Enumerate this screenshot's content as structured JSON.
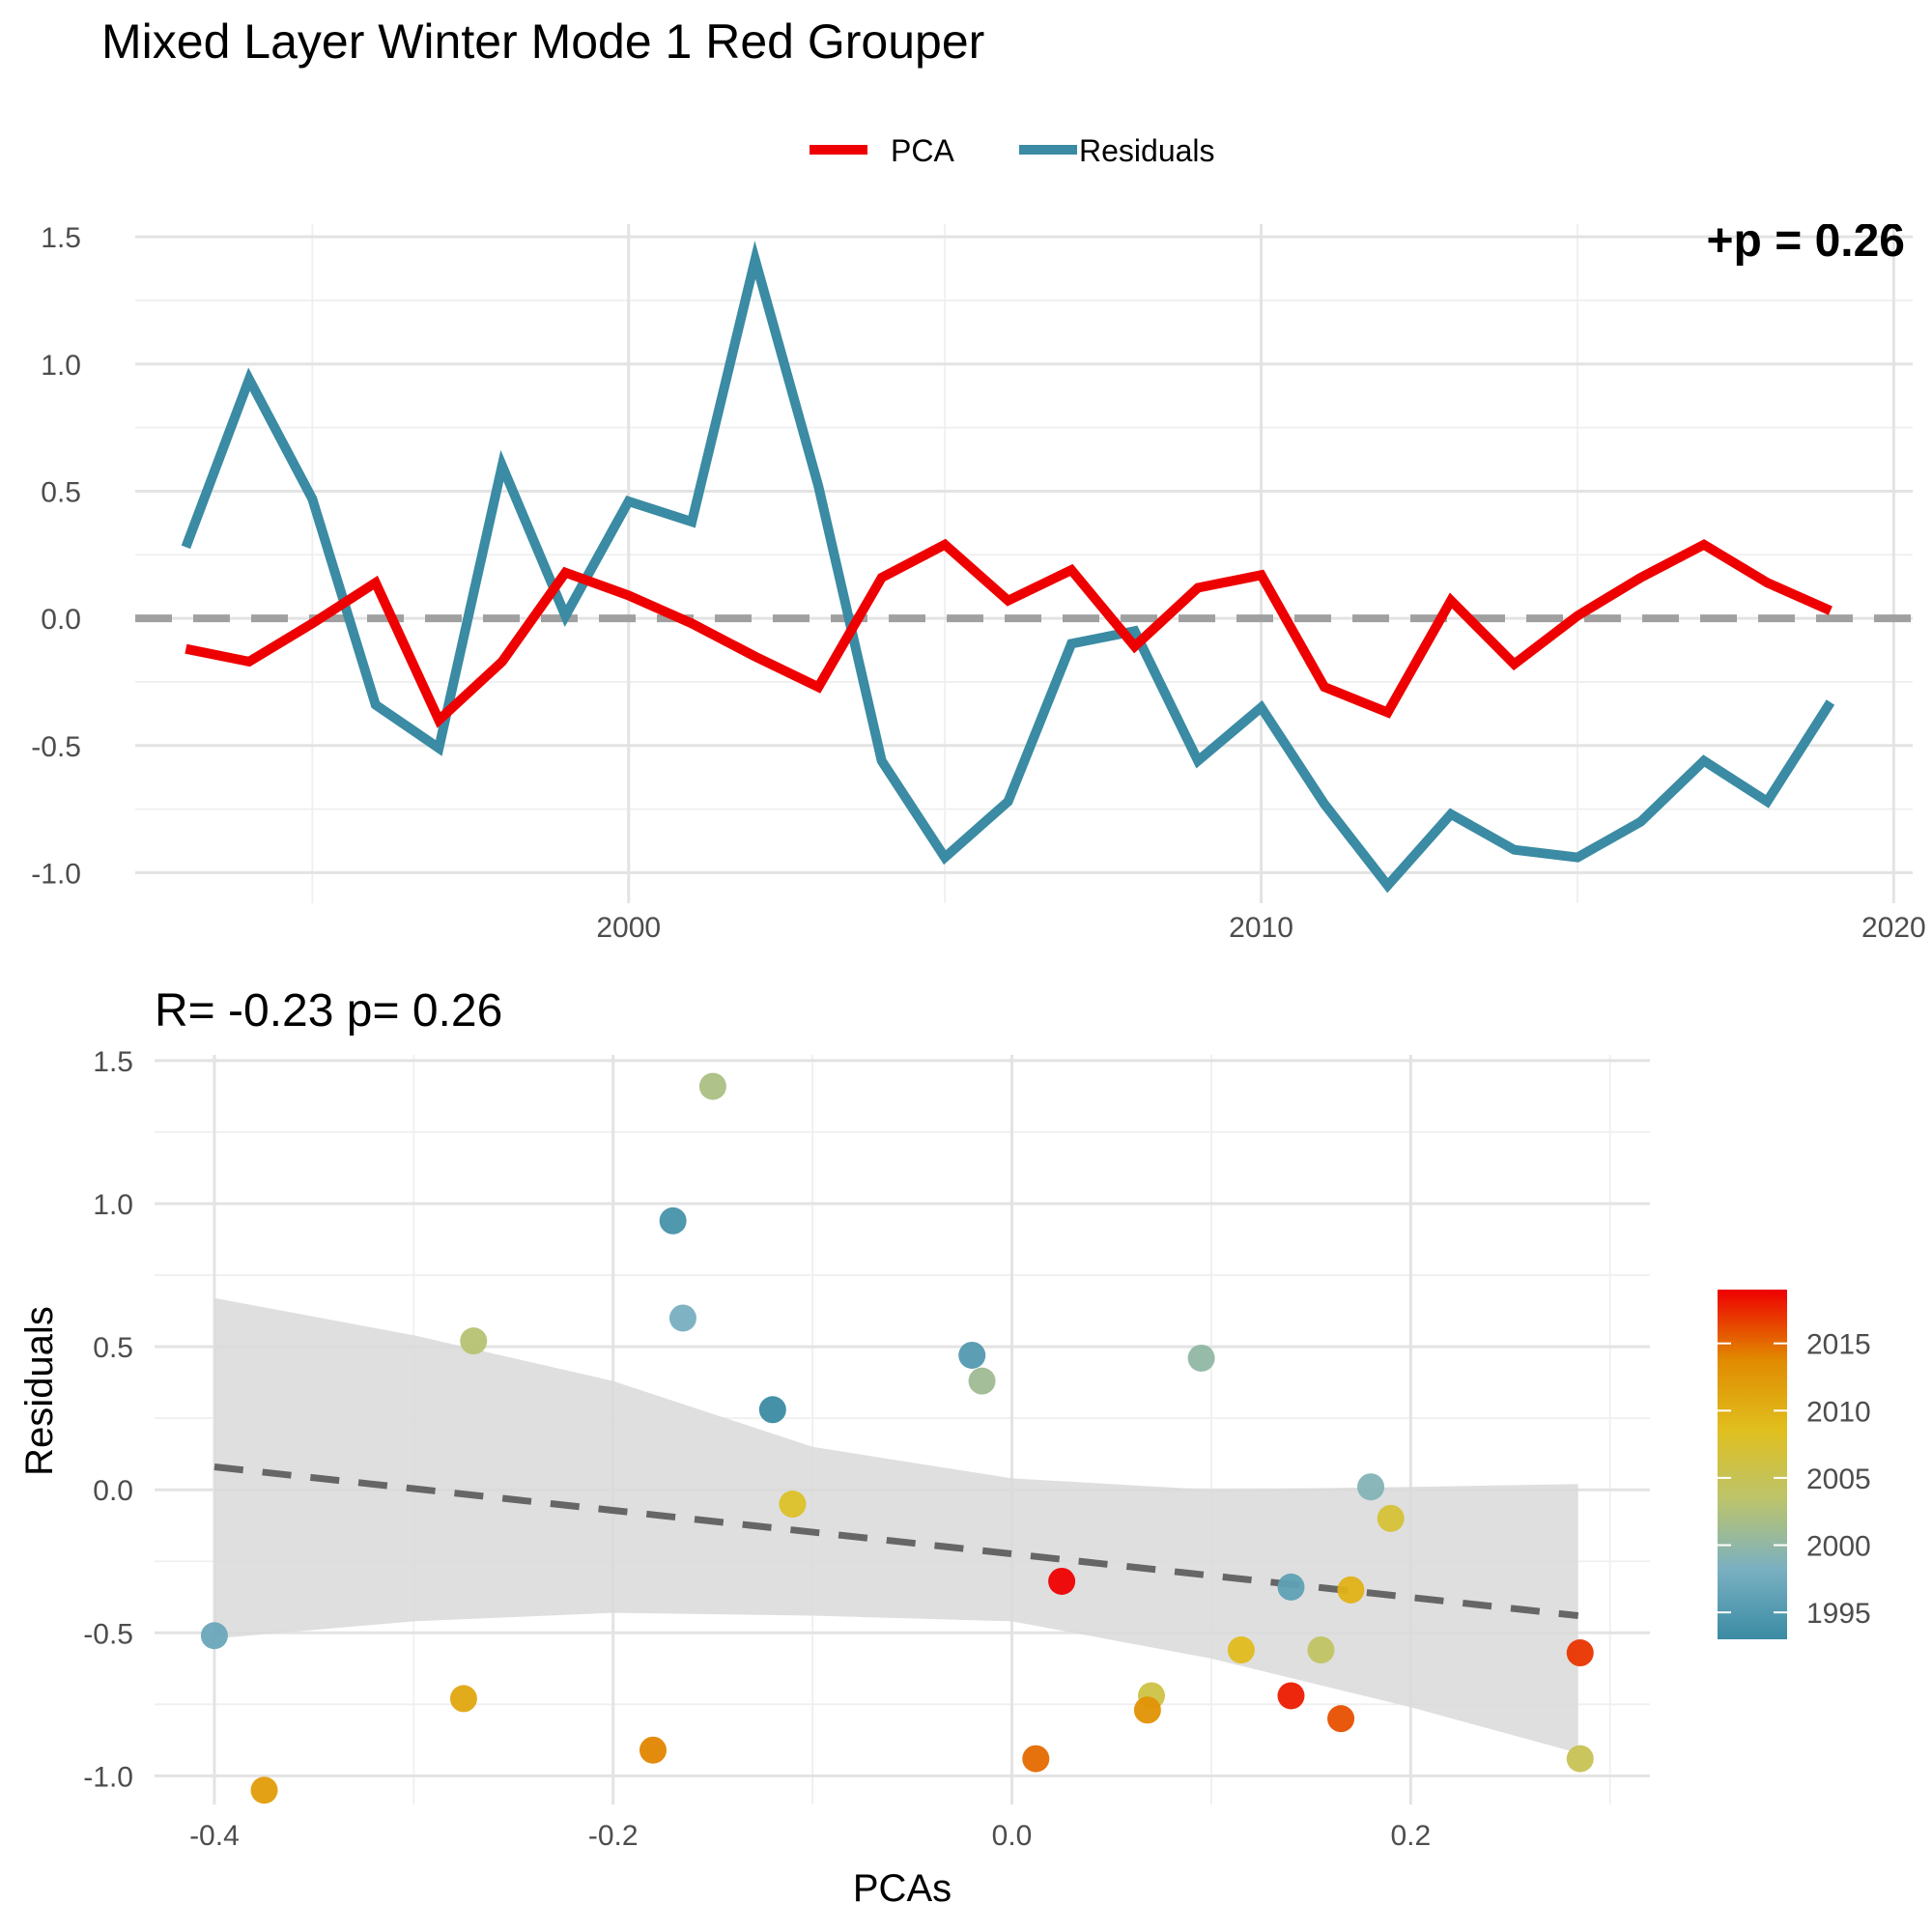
{
  "title": "Mixed Layer Winter Mode 1 Red Grouper",
  "colors": {
    "pca": "#EE0000",
    "residuals": "#3A8BA3",
    "zero_line": "#A0A0A0",
    "fit_line": "#666666",
    "ci_band": "#D9D9D9"
  },
  "chart_data": [
    {
      "type": "line",
      "title": "",
      "xlabel": "",
      "ylabel": "",
      "legend": {
        "position": "top",
        "entries": [
          "PCA",
          "Residuals"
        ]
      },
      "clipped_annotation": "+p = 0.26",
      "xlim": [
        1992.2,
        2020.3
      ],
      "ylim": [
        -1.12,
        1.55
      ],
      "x_ticks": [
        2000,
        2010,
        2020
      ],
      "x_tick_labels": [
        "2000",
        "2010",
        "2020"
      ],
      "y_ticks": [
        -1.0,
        -0.5,
        0.0,
        0.5,
        1.0,
        1.5
      ],
      "y_tick_labels": [
        "-1.0",
        "-0.5",
        "0.0",
        "0.5",
        "1.0",
        "1.5"
      ],
      "hline": 0.0,
      "x": [
        1993,
        1994,
        1995,
        1996,
        1997,
        1998,
        1999,
        2000,
        2001,
        2002,
        2003,
        2004,
        2005,
        2006,
        2007,
        2008,
        2009,
        2010,
        2011,
        2012,
        2013,
        2014,
        2015,
        2016,
        2017,
        2018,
        2019
      ],
      "series": [
        {
          "name": "PCA",
          "color": "#EE0000",
          "values": [
            -0.12,
            -0.17,
            -0.02,
            0.14,
            -0.4,
            -0.17,
            0.18,
            0.09,
            -0.02,
            -0.15,
            -0.27,
            0.16,
            0.29,
            0.07,
            0.19,
            -0.11,
            0.12,
            0.17,
            -0.27,
            -0.37,
            0.07,
            -0.18,
            0.01,
            0.16,
            0.29,
            0.14,
            0.03
          ]
        },
        {
          "name": "Residuals",
          "color": "#3A8BA3",
          "values": [
            0.28,
            0.94,
            0.47,
            -0.34,
            -0.51,
            0.6,
            0.01,
            0.46,
            0.38,
            1.41,
            0.52,
            -0.56,
            -0.94,
            -0.72,
            -0.1,
            -0.05,
            -0.56,
            -0.35,
            -0.73,
            -1.05,
            -0.77,
            -0.91,
            -0.94,
            -0.8,
            -0.56,
            -0.72,
            -0.33
          ]
        }
      ]
    },
    {
      "type": "scatter",
      "title": "R= -0.23  p= 0.26",
      "xlabel": "PCAs",
      "ylabel": "Residuals",
      "xlim": [
        -0.43,
        0.32
      ],
      "ylim": [
        -1.1,
        1.52
      ],
      "x_ticks": [
        -0.4,
        -0.2,
        0.0,
        0.2
      ],
      "x_tick_labels": [
        "-0.4",
        "-0.2",
        "0.0",
        "0.2"
      ],
      "y_ticks": [
        -1.0,
        -0.5,
        0.0,
        0.5,
        1.0,
        1.5
      ],
      "y_tick_labels": [
        "-1.0",
        "-0.5",
        "0.0",
        "0.5",
        "1.0",
        "1.5"
      ],
      "fit": {
        "x": [
          -0.4,
          0.284
        ],
        "y": [
          0.08,
          -0.44
        ]
      },
      "confidence_band": {
        "x": [
          -0.4,
          -0.3,
          -0.2,
          -0.1,
          0.0,
          0.1,
          0.2,
          0.284
        ],
        "upper": [
          0.67,
          0.54,
          0.38,
          0.15,
          0.04,
          0.0,
          0.01,
          0.02
        ],
        "lower": [
          -0.52,
          -0.46,
          -0.43,
          -0.44,
          -0.46,
          -0.59,
          -0.76,
          -0.92
        ]
      },
      "colorbar": {
        "ticks": [
          1995,
          2000,
          2005,
          2010,
          2015
        ],
        "tick_labels": [
          "1995",
          "2000",
          "2005",
          "2010",
          "2015"
        ],
        "range": [
          1993,
          2019
        ],
        "stops": [
          "#3A8BA3",
          "#7AB0C2",
          "#BCC46C",
          "#E0BF1E",
          "#E18A00",
          "#EE0000"
        ]
      },
      "points": [
        {
          "x": -0.12,
          "y": 0.28,
          "year": 1993
        },
        {
          "x": -0.17,
          "y": 0.94,
          "year": 1994
        },
        {
          "x": -0.02,
          "y": 0.47,
          "year": 1995
        },
        {
          "x": 0.14,
          "y": -0.34,
          "year": 1996
        },
        {
          "x": -0.4,
          "y": -0.51,
          "year": 1997
        },
        {
          "x": -0.165,
          "y": 0.6,
          "year": 1998
        },
        {
          "x": 0.18,
          "y": 0.01,
          "year": 1999
        },
        {
          "x": 0.095,
          "y": 0.46,
          "year": 2000
        },
        {
          "x": -0.015,
          "y": 0.38,
          "year": 2001
        },
        {
          "x": -0.15,
          "y": 1.41,
          "year": 2002
        },
        {
          "x": -0.27,
          "y": 0.52,
          "year": 2003
        },
        {
          "x": 0.155,
          "y": -0.56,
          "year": 2004
        },
        {
          "x": 0.285,
          "y": -0.94,
          "year": 2005
        },
        {
          "x": 0.07,
          "y": -0.72,
          "year": 2006
        },
        {
          "x": 0.19,
          "y": -0.1,
          "year": 2007
        },
        {
          "x": -0.11,
          "y": -0.05,
          "year": 2008
        },
        {
          "x": 0.115,
          "y": -0.56,
          "year": 2009
        },
        {
          "x": 0.17,
          "y": -0.35,
          "year": 2010
        },
        {
          "x": -0.275,
          "y": -0.73,
          "year": 2011
        },
        {
          "x": -0.375,
          "y": -1.05,
          "year": 2012
        },
        {
          "x": 0.068,
          "y": -0.77,
          "year": 2013
        },
        {
          "x": -0.18,
          "y": -0.91,
          "year": 2014
        },
        {
          "x": 0.012,
          "y": -0.94,
          "year": 2015
        },
        {
          "x": 0.165,
          "y": -0.8,
          "year": 2016
        },
        {
          "x": 0.285,
          "y": -0.57,
          "year": 2017
        },
        {
          "x": 0.14,
          "y": -0.72,
          "year": 2018
        },
        {
          "x": 0.025,
          "y": -0.32,
          "year": 2019
        }
      ]
    }
  ]
}
